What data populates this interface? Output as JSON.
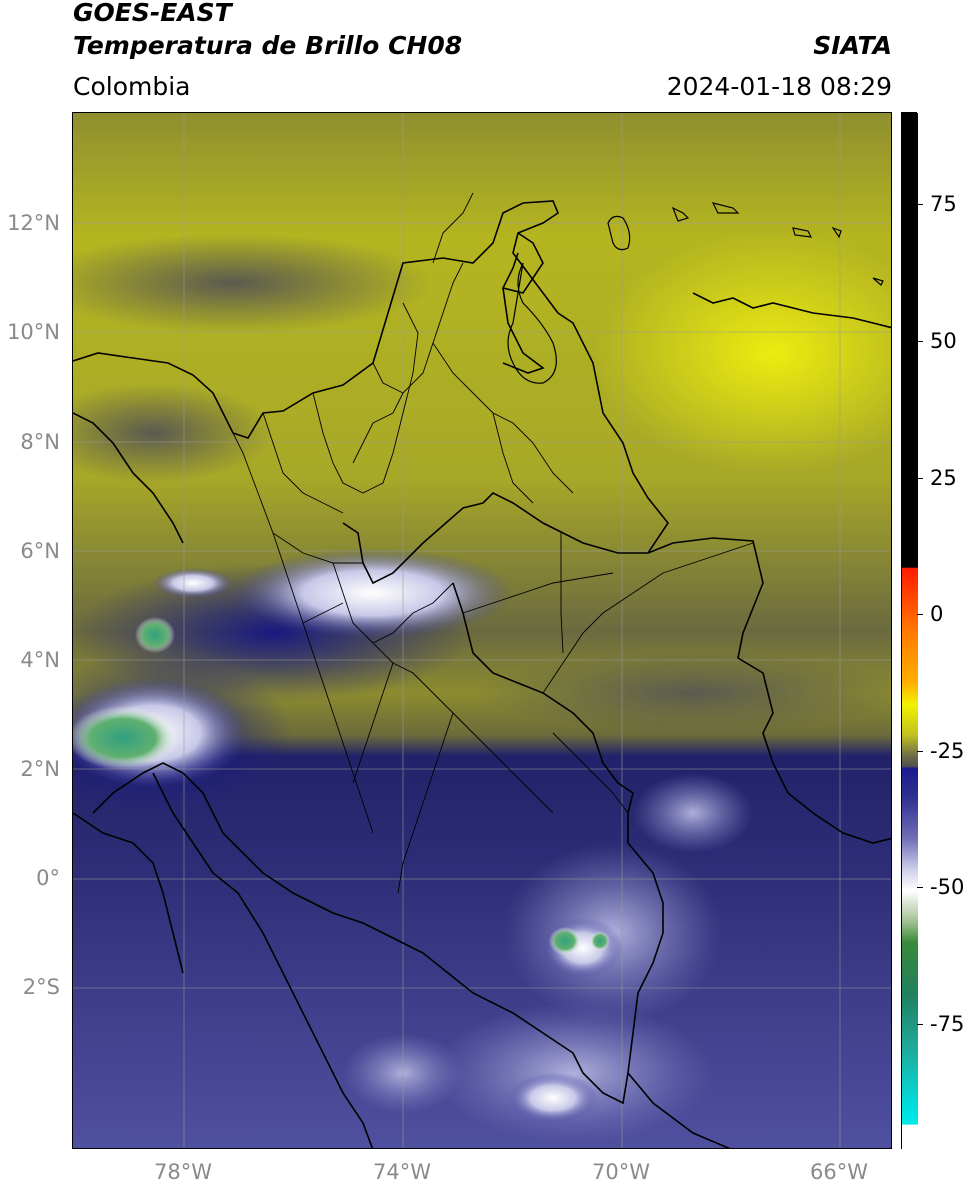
{
  "header": {
    "satellite": "GOES-EAST",
    "product": "Temperatura de Brillo CH08",
    "agency": "SIATA",
    "region": "Colombia",
    "timestamp": "2024-01-18 08:29"
  },
  "map": {
    "lat_labels": [
      "12°N",
      "10°N",
      "8°N",
      "6°N",
      "4°N",
      "2°N",
      "0°",
      "2°S"
    ],
    "lon_labels": [
      "78°W",
      "74°W",
      "70°W",
      "66°W"
    ]
  },
  "colorbar": {
    "labels": [
      "75",
      "50",
      "25",
      "0",
      "-25",
      "-50",
      "-75"
    ],
    "colors": {
      "black": "#000000",
      "red": "#ff2a00",
      "orange": "#ff9a00",
      "yellow": "#f2f200",
      "olive": "#8c8c30",
      "gray": "#555555",
      "navy": "#1a1a8a",
      "lavender": "#a8a8d8",
      "white": "#ffffff",
      "green": "#3a8a3a",
      "teal": "#20b0a0",
      "cyan": "#00e0e0"
    }
  }
}
